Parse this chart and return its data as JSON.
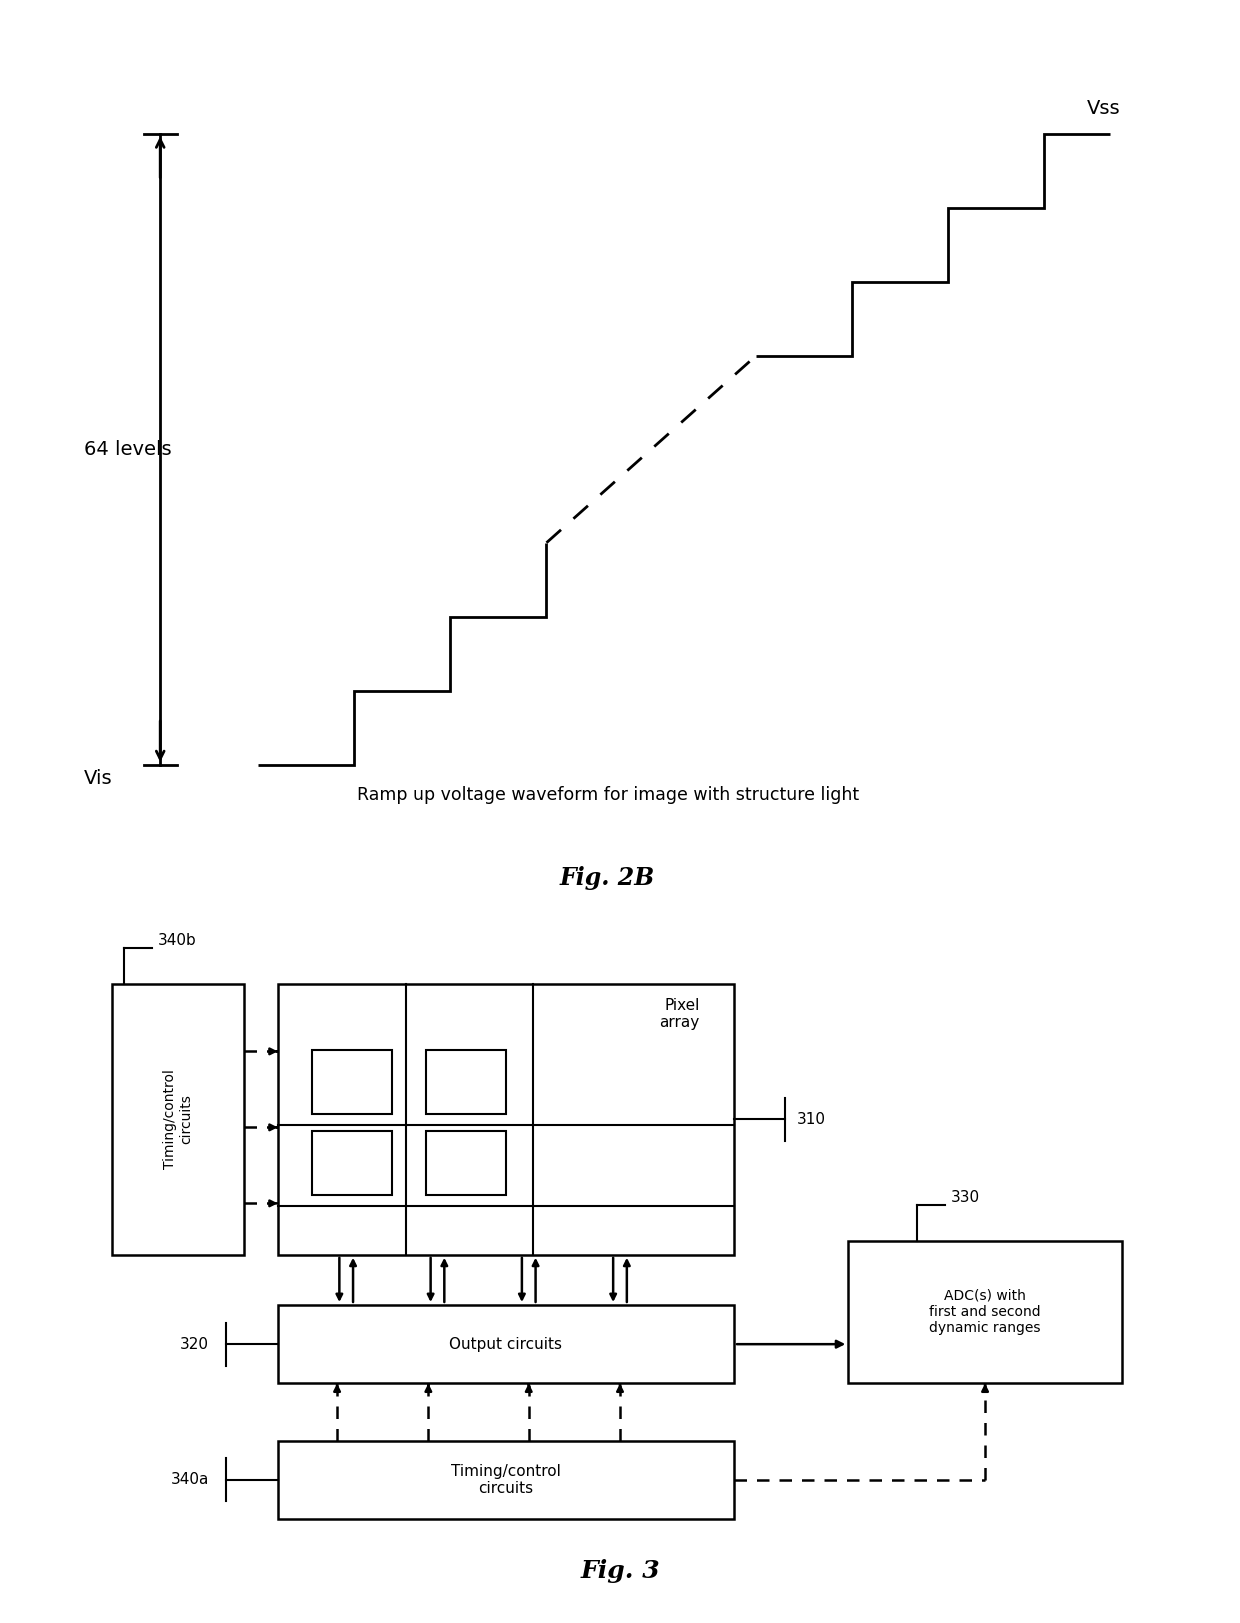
{
  "fig_width": 12.4,
  "fig_height": 16.23,
  "bg_color": "#ffffff",
  "top_diagram": {
    "color": "#000000",
    "label_vis": "Vis",
    "label_vss": "Vss",
    "label_levels": "64 levels",
    "caption": "Ramp up voltage waveform for image with structure light",
    "fig_label": "Fig. 2B"
  },
  "bottom_diagram": {
    "fig_label": "Fig. 3",
    "box_color": "#000000",
    "box_fill": "#ffffff",
    "text_color": "#000000"
  }
}
